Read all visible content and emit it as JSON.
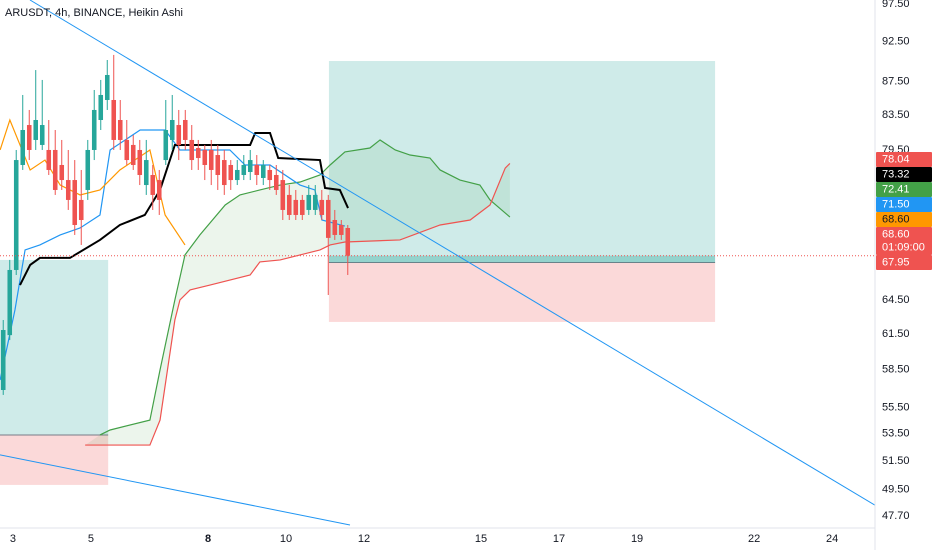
{
  "chart_data": {
    "type": "candlestick",
    "title": "ARUSDT, 4h, BINANCE, Heikin Ashi",
    "y_scale": "log",
    "xlim": [
      2.667,
      25.1
    ],
    "ylim": [
      46.9,
      98.05
    ],
    "xticks": [
      3,
      5,
      8,
      10,
      12,
      15,
      17,
      19,
      22,
      24
    ],
    "yticks": [
      {
        "value": 97.5,
        "label": "97.50"
      },
      {
        "value": 92.5,
        "label": "92.50"
      },
      {
        "value": 87.5,
        "label": "87.50"
      },
      {
        "value": 83.5,
        "label": "83.50"
      },
      {
        "value": 79.5,
        "label": "79.50"
      },
      {
        "value": 64.5,
        "label": "64.50"
      },
      {
        "value": 61.5,
        "label": "61.50"
      },
      {
        "value": 58.5,
        "label": "58.50"
      },
      {
        "value": 55.5,
        "label": "55.50"
      },
      {
        "value": 53.5,
        "label": "53.50"
      },
      {
        "value": 51.5,
        "label": "51.50"
      },
      {
        "value": 49.5,
        "label": "49.50"
      },
      {
        "value": 47.7,
        "label": "47.70"
      }
    ],
    "up_color": "#26a69a",
    "down_color": "#ef5350",
    "x": [
      2.75,
      2.917,
      3.083,
      3.25,
      3.417,
      3.583,
      3.75,
      3.917,
      4.083,
      4.25,
      4.417,
      4.583,
      4.75,
      4.917,
      5.083,
      5.25,
      5.417,
      5.583,
      5.75,
      5.917,
      6.083,
      6.25,
      6.417,
      6.583,
      6.75,
      6.917,
      7.083,
      7.25,
      7.417,
      7.583,
      7.75,
      7.917,
      8.083,
      8.25,
      8.417,
      8.583,
      8.75,
      8.917,
      9.083,
      9.25,
      9.417,
      9.583,
      9.75,
      9.917,
      10.083,
      10.25,
      10.417,
      10.583,
      10.75,
      10.917,
      11.083,
      11.25,
      11.417,
      11.583
    ],
    "open": [
      56.87,
      61.4,
      67.25,
      77.87,
      82.34,
      80.64,
      80.08,
      79.52,
      79.52,
      77.87,
      76.25,
      76.25,
      74.16,
      75.2,
      79.52,
      82.92,
      85.27,
      85.27,
      82.92,
      80.64,
      80.08,
      79.52,
      75.72,
      76.79,
      76.25,
      78.41,
      80.64,
      82.34,
      82.92,
      80.64,
      79.74,
      79.52,
      79.52,
      78.96,
      78.41,
      77.87,
      76.25,
      76.79,
      77.11,
      77.87,
      76.47,
      77.33,
      76.79,
      76.25,
      74.68,
      74.16,
      74.16,
      73.13,
      73.13,
      74.16,
      74.16,
      72.11,
      71.61,
      71.31
    ],
    "high": [
      62.71,
      68.2,
      79.52,
      85.87,
      84.09,
      88.91,
      87.69,
      82.92,
      81.77,
      80.64,
      79.52,
      78.41,
      77.33,
      80.64,
      86.47,
      87.69,
      90.17,
      90.81,
      85.27,
      82.92,
      81.2,
      80.64,
      80.64,
      77.87,
      77.33,
      85.27,
      85.87,
      84.09,
      84.09,
      82.34,
      80.64,
      80.08,
      80.64,
      80.08,
      79.52,
      78.41,
      78.41,
      78.96,
      79.52,
      78.96,
      78.41,
      77.87,
      77.87,
      77.33,
      75.72,
      75.2,
      74.68,
      75.72,
      75.72,
      75.2,
      74.68,
      73.13,
      72.11,
      71.61
    ],
    "low": [
      56.48,
      60.98,
      66.78,
      77.33,
      78.41,
      79.52,
      79.52,
      76.79,
      74.68,
      75.2,
      73.13,
      70.62,
      69.64,
      74.16,
      78.41,
      81.77,
      84.09,
      79.52,
      79.52,
      77.87,
      77.33,
      75.72,
      74.68,
      73.13,
      72.62,
      77.87,
      79.52,
      78.41,
      79.52,
      77.33,
      77.33,
      76.25,
      75.72,
      75.2,
      74.68,
      75.2,
      75.72,
      76.25,
      76.25,
      75.72,
      75.72,
      75.2,
      74.68,
      72.11,
      72.11,
      72.11,
      72.11,
      72.62,
      72.62,
      72.11,
      64.94,
      70.13,
      70.13,
      66.78
    ],
    "close": [
      61.84,
      67.25,
      78.41,
      81.77,
      79.52,
      82.92,
      82.34,
      77.33,
      75.2,
      76.25,
      74.16,
      71.61,
      72.11,
      79.52,
      84.09,
      85.87,
      88.3,
      80.64,
      80.64,
      78.41,
      77.87,
      76.79,
      78.41,
      74.68,
      74.16,
      81.77,
      82.92,
      80.08,
      80.64,
      78.41,
      78.63,
      77.87,
      77.33,
      76.79,
      75.72,
      76.25,
      77.33,
      77.87,
      78.41,
      76.79,
      77.87,
      76.25,
      75.2,
      73.13,
      72.62,
      72.62,
      72.62,
      74.68,
      74.68,
      72.62,
      70.33,
      70.62,
      70.62,
      68.6
    ],
    "cloud_color": "#43a047",
    "lines": [
      {
        "color": "#43a047",
        "x": [
          5.23,
          5.49,
          6.51,
          6.77,
          7.15,
          7.41,
          7.79,
          8.44,
          8.82,
          9.33,
          9.85,
          10.36,
          10.87,
          11.13,
          11.51,
          12.15,
          12.41,
          12.8,
          13.18,
          13.69,
          13.95,
          14.46,
          14.97,
          15.23,
          15.74
        ],
        "values": [
          53.41,
          53.78,
          54.53,
          58.49,
          64.49,
          68.68,
          70.62,
          73.64,
          74.68,
          75.2,
          75.72,
          76.04,
          76.79,
          77.87,
          79.3,
          79.74,
          80.64,
          79.52,
          78.96,
          78.63,
          77.33,
          76.25,
          75.72,
          74.16,
          72.41
        ]
      },
      {
        "color": "#ef5350",
        "x": [
          4.85,
          6.51,
          6.77,
          7.15,
          7.28,
          7.54,
          8.05,
          9.08,
          9.33,
          9.85,
          10.36,
          10.87,
          11.13,
          11.51,
          12.92,
          13.95,
          14.72,
          15.23,
          15.62,
          15.74
        ],
        "values": [
          52.66,
          52.66,
          54.53,
          62.71,
          64.49,
          65.4,
          65.85,
          66.78,
          68.01,
          68.2,
          68.68,
          69.16,
          69.64,
          69.93,
          70.13,
          71.61,
          72.11,
          73.64,
          77.54,
          78.04
        ]
      },
      {
        "color": "#2196f3",
        "x": [
          2.67,
          3.05,
          3.31,
          3.69,
          4.21,
          4.72,
          5.23,
          5.49,
          6.26,
          6.9,
          7.28,
          8.05,
          8.56,
          8.95,
          9.59,
          10.36,
          10.74,
          10.92,
          11.51
        ],
        "values": [
          57.67,
          63.59,
          69.16,
          69.64,
          70.62,
          71.31,
          72.62,
          79.52,
          81.77,
          81.77,
          79.52,
          79.52,
          79.52,
          77.87,
          77.87,
          75.72,
          75.2,
          72.11,
          71.5
        ]
      },
      {
        "color": "#000000",
        "x": [
          3.18,
          3.44,
          3.69,
          4.46,
          5.23,
          5.74,
          6.38,
          6.77,
          7.15,
          7.54,
          9.08,
          9.21,
          9.59,
          9.8,
          10.87,
          11.0,
          11.38,
          11.59
        ],
        "values": [
          65.85,
          67.72,
          68.39,
          68.39,
          70.13,
          71.61,
          72.62,
          75.2,
          80.08,
          80.08,
          80.08,
          81.43,
          81.43,
          78.63,
          78.41,
          75.41,
          75.2,
          73.32
        ]
      },
      {
        "color": "#ff9800",
        "x": [
          2.67,
          2.92,
          3.18,
          3.44,
          3.82,
          4.21,
          4.72,
          5.23,
          5.74,
          6.51,
          6.9,
          7.41
        ],
        "values": [
          79.52,
          82.92,
          80.08,
          77.33,
          78.41,
          75.72,
          74.68,
          75.2,
          77.33,
          79.52,
          72.62,
          69.64
        ]
      }
    ],
    "trendlines": [
      {
        "color": "#2196f3",
        "x": [
          3.436,
          25.1
        ],
        "values": [
          98.05,
          48.42
        ]
      },
      {
        "color": "#2196f3",
        "x": [
          2.667,
          11.64
        ],
        "values": [
          51.94,
          47.1
        ]
      }
    ],
    "positions": [
      {
        "x": [
          11.1,
          21.0
        ],
        "target": 90.04,
        "entry": 67.95,
        "stop": 62.54
      },
      {
        "x": [
          2.667,
          5.44
        ],
        "target": 68.2,
        "entry": 53.41,
        "stop": 49.81
      }
    ],
    "price_labels": [
      {
        "value": 78.04,
        "label": "78.04",
        "color": "#ef5350"
      },
      {
        "value": 73.32,
        "label": "73.32",
        "color": "#000000"
      },
      {
        "value": 72.41,
        "label": "72.41",
        "color": "#43a047"
      },
      {
        "value": 71.5,
        "label": "71.50",
        "color": "#2196f3"
      },
      {
        "value": 68.6,
        "label": "68.60",
        "color": "#ef5350",
        "countdown": "01:09:00"
      },
      {
        "value": 68.6,
        "label": "68.60",
        "color": "#ff9800"
      },
      {
        "value": 67.95,
        "label": "67.95",
        "color": "#ef5350"
      }
    ]
  }
}
